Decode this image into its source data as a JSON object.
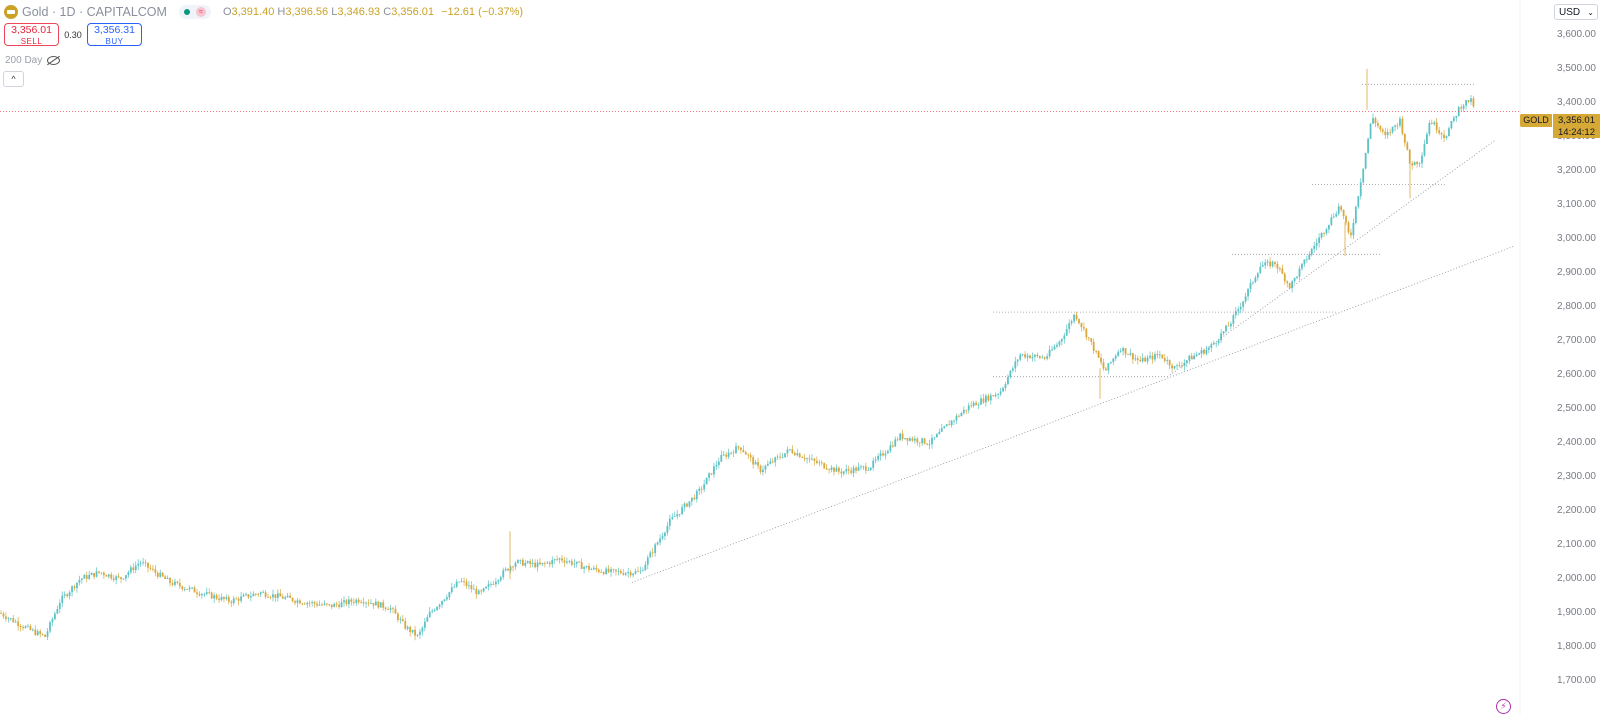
{
  "header": {
    "title": "Gold · 1D · CAPITALCOM",
    "ohlc": {
      "o_label": "O",
      "o": "3,391.40",
      "h_label": "H",
      "h": "3,396.56",
      "l_label": "L",
      "l": "3,346.93",
      "c_label": "C",
      "c": "3,356.01",
      "change": "−12.61 (−0.37%)"
    }
  },
  "trade": {
    "sell_price": "3,356.01",
    "sell_label": "SELL",
    "spread": "0.30",
    "buy_price": "3,356.31",
    "buy_label": "BUY"
  },
  "indicator": {
    "label": "200 Day"
  },
  "axis": {
    "currency": "USD",
    "ticks": [
      "3,600.00",
      "3,500.00",
      "3,400.00",
      "3,300.00",
      "3,200.00",
      "3,100.00",
      "3,000.00",
      "2,900.00",
      "2,800.00",
      "2,700.00",
      "2,600.00",
      "2,500.00",
      "2,400.00",
      "2,300.00",
      "2,200.00",
      "2,100.00",
      "2,000.00",
      "1,900.00",
      "1,800.00",
      "1,700.00"
    ],
    "tick_values": [
      3600,
      3500,
      3400,
      3300,
      3200,
      3100,
      3000,
      2900,
      2800,
      2700,
      2600,
      2500,
      2400,
      2300,
      2200,
      2100,
      2000,
      1900,
      1800,
      1700
    ]
  },
  "last_price": {
    "symbol": "GOLD",
    "price": "3,356.01",
    "countdown": "14:24:12",
    "value": 3356.01
  },
  "colors": {
    "up": "#5bc2c6",
    "down": "#d9a73c",
    "trendline": "#8a8f9c",
    "price_line": "#f0465a",
    "tag": "#d6a936"
  },
  "chart_data": {
    "type": "candlestick",
    "ylim": [
      1680,
      3660
    ],
    "price_path": [
      [
        0,
        1900
      ],
      [
        30,
        1850
      ],
      [
        45,
        1830
      ],
      [
        60,
        1935
      ],
      [
        80,
        2000
      ],
      [
        100,
        2020
      ],
      [
        120,
        2000
      ],
      [
        140,
        2050
      ],
      [
        170,
        1990
      ],
      [
        200,
        1960
      ],
      [
        230,
        1935
      ],
      [
        260,
        1960
      ],
      [
        300,
        1935
      ],
      [
        330,
        1920
      ],
      [
        360,
        1940
      ],
      [
        390,
        1915
      ],
      [
        405,
        1860
      ],
      [
        418,
        1830
      ],
      [
        430,
        1900
      ],
      [
        460,
        1995
      ],
      [
        480,
        1955
      ],
      [
        500,
        2010
      ],
      [
        515,
        2050
      ],
      [
        540,
        2040
      ],
      [
        560,
        2060
      ],
      [
        590,
        2030
      ],
      [
        610,
        2020
      ],
      [
        640,
        2020
      ],
      [
        670,
        2170
      ],
      [
        700,
        2260
      ],
      [
        720,
        2355
      ],
      [
        740,
        2390
      ],
      [
        760,
        2320
      ],
      [
        790,
        2380
      ],
      [
        810,
        2350
      ],
      [
        840,
        2315
      ],
      [
        870,
        2330
      ],
      [
        900,
        2420
      ],
      [
        930,
        2400
      ],
      [
        950,
        2460
      ],
      [
        970,
        2510
      ],
      [
        1000,
        2550
      ],
      [
        1020,
        2660
      ],
      [
        1045,
        2650
      ],
      [
        1060,
        2700
      ],
      [
        1075,
        2780
      ],
      [
        1090,
        2700
      ],
      [
        1105,
        2610
      ],
      [
        1120,
        2680
      ],
      [
        1140,
        2640
      ],
      [
        1160,
        2660
      ],
      [
        1175,
        2620
      ],
      [
        1190,
        2650
      ],
      [
        1210,
        2680
      ],
      [
        1230,
        2750
      ],
      [
        1245,
        2830
      ],
      [
        1260,
        2920
      ],
      [
        1275,
        2930
      ],
      [
        1290,
        2860
      ],
      [
        1310,
        2960
      ],
      [
        1325,
        3030
      ],
      [
        1340,
        3100
      ],
      [
        1350,
        3000
      ],
      [
        1360,
        3160
      ],
      [
        1372,
        3360
      ],
      [
        1385,
        3300
      ],
      [
        1400,
        3350
      ],
      [
        1410,
        3220
      ],
      [
        1420,
        3230
      ],
      [
        1430,
        3350
      ],
      [
        1445,
        3300
      ],
      [
        1460,
        3390
      ],
      [
        1470,
        3410
      ],
      [
        1480,
        3360
      ]
    ],
    "horizontal_levels": [
      {
        "value": 3455,
        "from": 1362,
        "to": 1475
      },
      {
        "value": 3160,
        "from": 1312,
        "to": 1447
      },
      {
        "value": 2955,
        "from": 1232,
        "to": 1382
      },
      {
        "value": 2785,
        "from": 993,
        "to": 1338
      },
      {
        "value": 2595,
        "from": 993,
        "to": 1170
      }
    ],
    "trendlines": [
      {
        "x1": 632,
        "y1": 1990,
        "x2": 1515,
        "y2": 2980
      },
      {
        "x1": 1170,
        "y1": 2600,
        "x2": 1495,
        "y2": 3290
      }
    ]
  }
}
